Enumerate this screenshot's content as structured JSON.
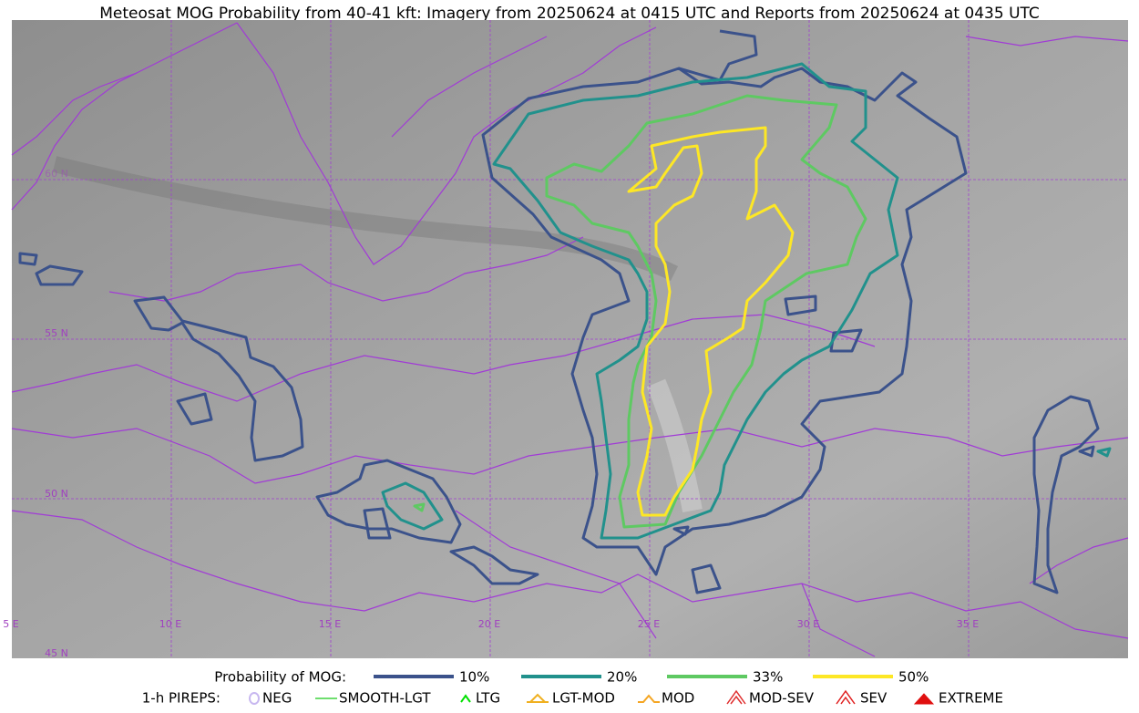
{
  "header": {
    "title": "Meteosat MOG Probability from 40-41 kft: Imagery from 20250624 at 0415 UTC and Reports from 20250624 at 0435 UTC"
  },
  "map": {
    "grid_labels": [
      "5 E",
      "10 E",
      "15 E",
      "20 E",
      "25 E",
      "30 E",
      "35 E",
      "45 N",
      "50 N",
      "55 N",
      "60 N"
    ]
  },
  "legend": {
    "probability": {
      "label": "Probability of MOG:",
      "items": [
        {
          "label": "10%",
          "color": "#3b528b"
        },
        {
          "label": "20%",
          "color": "#21918c"
        },
        {
          "label": "33%",
          "color": "#5ec962"
        },
        {
          "label": "50%",
          "color": "#fde725"
        }
      ]
    },
    "pireps": {
      "label": "1-h PIREPS:",
      "items": [
        {
          "label": "NEG",
          "color": "#c8b8f0"
        },
        {
          "label": "SMOOTH-LGT",
          "color": "#3ed43e"
        },
        {
          "label": "LTG",
          "color": "#00e000"
        },
        {
          "label": "LGT-MOD",
          "color": "#f0b020"
        },
        {
          "label": "MOD",
          "color": "#f5a623"
        },
        {
          "label": "MOD-SEV",
          "color": "#e03030"
        },
        {
          "label": "SEV",
          "color": "#e02020"
        },
        {
          "label": "EXTREME",
          "color": "#e01010"
        }
      ]
    }
  }
}
